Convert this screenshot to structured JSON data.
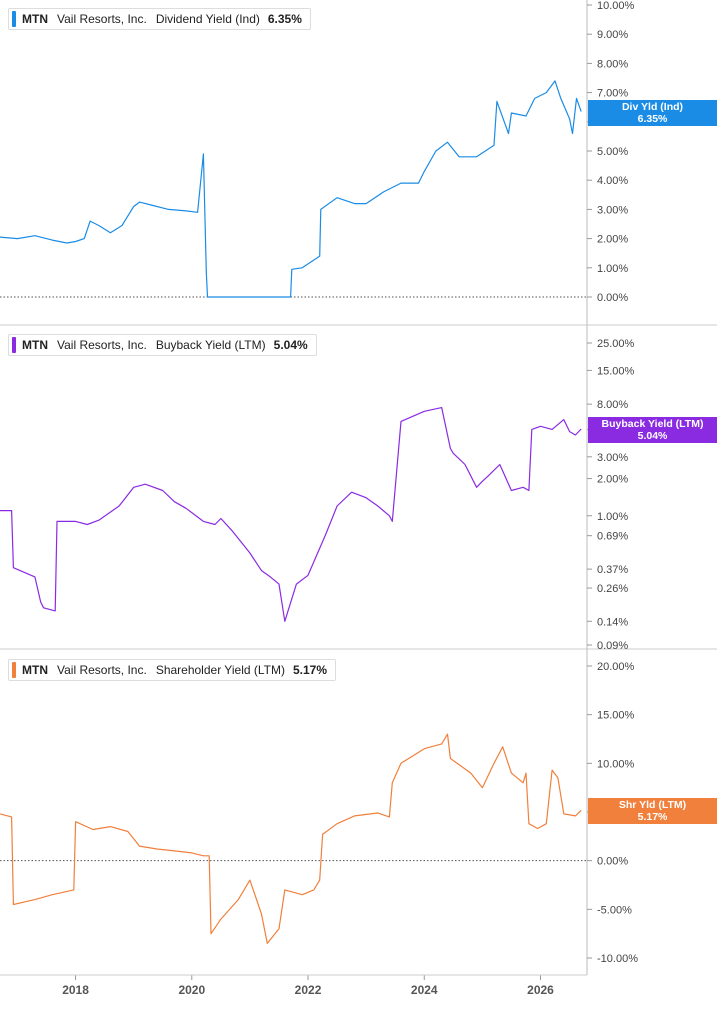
{
  "panels": [
    {
      "ticker": "MTN",
      "company": "Vail Resorts, Inc.",
      "metric": "Dividend Yield (Ind)",
      "current_value": "6.35%",
      "badge_label": "Div Yld (Ind)",
      "badge_value": "6.35%",
      "color": "#1a8ce6"
    },
    {
      "ticker": "MTN",
      "company": "Vail Resorts, Inc.",
      "metric": "Buyback Yield (LTM)",
      "current_value": "5.04%",
      "badge_label": "Buyback Yield (LTM)",
      "badge_value": "5.04%",
      "color": "#8a2be2"
    },
    {
      "ticker": "MTN",
      "company": "Vail Resorts, Inc.",
      "metric": "Shareholder Yield (LTM)",
      "current_value": "5.17%",
      "badge_label": "Shr Yld (LTM)",
      "badge_value": "5.17%",
      "color": "#f0803c"
    }
  ],
  "chart_data": [
    {
      "type": "line",
      "title": "MTN Vail Resorts, Inc. Dividend Yield (Ind) 6.35%",
      "y_scale": "linear",
      "ylim": [
        0,
        10
      ],
      "xlim": [
        2016.7,
        2026.8
      ],
      "y_ticks": [
        0,
        1,
        2,
        3,
        4,
        5,
        6,
        7,
        8,
        9,
        10
      ],
      "y_tick_labels": [
        "0.00%",
        "1.00%",
        "2.00%",
        "3.00%",
        "4.00%",
        "5.00%",
        "6.00%",
        "7.00%",
        "8.00%",
        "9.00%",
        "10.00%"
      ],
      "zero_line": "dotted",
      "series": [
        {
          "name": "Div Yld (Ind)",
          "x": [
            2016.7,
            2017.0,
            2017.3,
            2017.6,
            2017.85,
            2018.0,
            2018.15,
            2018.25,
            2018.4,
            2018.6,
            2018.8,
            2019.0,
            2019.1,
            2019.3,
            2019.6,
            2019.9,
            2020.1,
            2020.2,
            2020.25,
            2020.27,
            2021.7,
            2021.72,
            2021.9,
            2022.2,
            2022.22,
            2022.5,
            2022.8,
            2023.0,
            2023.3,
            2023.6,
            2023.9,
            2024.0,
            2024.2,
            2024.4,
            2024.6,
            2024.9,
            2025.2,
            2025.25,
            2025.45,
            2025.5,
            2025.75,
            2025.9,
            2026.1,
            2026.25,
            2026.35,
            2026.5,
            2026.55,
            2026.62,
            2026.7
          ],
          "y": [
            2.05,
            2.0,
            2.1,
            1.95,
            1.85,
            1.9,
            2.0,
            2.6,
            2.45,
            2.2,
            2.45,
            3.1,
            3.25,
            3.15,
            3.0,
            2.95,
            2.9,
            4.9,
            0.85,
            0.0,
            0.0,
            0.95,
            1.0,
            1.4,
            3.0,
            3.4,
            3.2,
            3.2,
            3.6,
            3.9,
            3.9,
            4.3,
            5.0,
            5.3,
            4.8,
            4.8,
            5.2,
            6.7,
            5.6,
            6.3,
            6.2,
            6.8,
            7.0,
            7.4,
            6.8,
            6.1,
            5.6,
            6.8,
            6.35
          ]
        }
      ],
      "x_tick_labels": [
        "2018",
        "2020",
        "2022",
        "2024",
        "2026"
      ],
      "x_ticks": [
        2018,
        2020,
        2022,
        2024,
        2026
      ]
    },
    {
      "type": "line",
      "title": "MTN Vail Resorts, Inc. Buyback Yield (LTM) 5.04%",
      "y_scale": "log",
      "ylim": [
        0.09,
        25
      ],
      "xlim": [
        2016.7,
        2026.8
      ],
      "y_ticks": [
        0.09,
        0.14,
        0.26,
        0.37,
        0.69,
        1.0,
        2.0,
        3.0,
        5.0,
        8.0,
        15.0,
        25.0
      ],
      "y_tick_labels": [
        "0.09%",
        "0.14%",
        "0.26%",
        "0.37%",
        "0.69%",
        "1.00%",
        "2.00%",
        "3.00%",
        "5.00%",
        "8.00%",
        "15.00%",
        "25.00%"
      ],
      "series": [
        {
          "name": "Buyback Yield (LTM)",
          "x": [
            2016.7,
            2016.9,
            2016.93,
            2017.3,
            2017.4,
            2017.45,
            2017.65,
            2017.68,
            2018.0,
            2018.2,
            2018.4,
            2018.75,
            2019.0,
            2019.2,
            2019.5,
            2019.7,
            2019.9,
            2020.2,
            2020.4,
            2020.5,
            2020.7,
            2021.0,
            2021.2,
            2021.35,
            2021.5,
            2021.6,
            2021.8,
            2022.0,
            2022.3,
            2022.5,
            2022.75,
            2023.0,
            2023.2,
            2023.4,
            2023.45,
            2023.6,
            2024.0,
            2024.3,
            2024.45,
            2024.5,
            2024.7,
            2024.9,
            2025.0,
            2025.1,
            2025.3,
            2025.5,
            2025.7,
            2025.8,
            2025.85,
            2026.0,
            2026.2,
            2026.4,
            2026.5,
            2026.6,
            2026.7
          ],
          "y": [
            1.1,
            1.1,
            0.38,
            0.32,
            0.2,
            0.18,
            0.17,
            0.9,
            0.9,
            0.85,
            0.92,
            1.2,
            1.7,
            1.8,
            1.6,
            1.3,
            1.15,
            0.9,
            0.85,
            0.95,
            0.75,
            0.5,
            0.36,
            0.32,
            0.28,
            0.14,
            0.28,
            0.33,
            0.7,
            1.2,
            1.55,
            1.4,
            1.2,
            1.0,
            0.9,
            5.8,
            7.0,
            7.5,
            3.5,
            3.2,
            2.6,
            1.7,
            1.9,
            2.1,
            2.6,
            1.6,
            1.7,
            1.6,
            5.0,
            5.3,
            5.0,
            6.0,
            4.8,
            4.5,
            5.04
          ]
        }
      ],
      "x_tick_labels": [
        "2018",
        "2020",
        "2022",
        "2024",
        "2026"
      ],
      "x_ticks": [
        2018,
        2020,
        2022,
        2024,
        2026
      ]
    },
    {
      "type": "line",
      "title": "MTN Vail Resorts, Inc. Shareholder Yield (LTM) 5.17%",
      "y_scale": "linear",
      "ylim": [
        -10,
        20
      ],
      "xlim": [
        2016.7,
        2026.8
      ],
      "y_ticks": [
        -10,
        -5,
        0,
        5,
        10,
        15,
        20
      ],
      "y_tick_labels": [
        "-10.00%",
        "-5.00%",
        "0.00%",
        "5.00%",
        "10.00%",
        "15.00%",
        "20.00%"
      ],
      "zero_line": "dotted",
      "series": [
        {
          "name": "Shr Yld (LTM)",
          "x": [
            2016.7,
            2016.9,
            2016.93,
            2017.3,
            2017.6,
            2017.97,
            2018.0,
            2018.3,
            2018.6,
            2018.9,
            2019.1,
            2019.4,
            2019.7,
            2020.0,
            2020.2,
            2020.3,
            2020.33,
            2020.5,
            2020.8,
            2021.0,
            2021.2,
            2021.3,
            2021.5,
            2021.6,
            2021.9,
            2022.1,
            2022.2,
            2022.25,
            2022.5,
            2022.8,
            2023.2,
            2023.4,
            2023.45,
            2023.6,
            2024.0,
            2024.3,
            2024.4,
            2024.45,
            2024.8,
            2025.0,
            2025.2,
            2025.35,
            2025.5,
            2025.7,
            2025.75,
            2025.8,
            2025.95,
            2026.1,
            2026.2,
            2026.3,
            2026.4,
            2026.6,
            2026.7
          ],
          "y": [
            4.8,
            4.5,
            -4.5,
            -4.0,
            -3.5,
            -3.0,
            4.0,
            3.2,
            3.5,
            3.0,
            1.5,
            1.2,
            1.0,
            0.8,
            0.5,
            0.5,
            -7.5,
            -6.0,
            -4.0,
            -2.0,
            -5.5,
            -8.5,
            -7.0,
            -3.0,
            -3.5,
            -3.0,
            -2.0,
            2.7,
            3.8,
            4.6,
            4.9,
            4.5,
            8.0,
            10.0,
            11.5,
            12.0,
            13.0,
            10.5,
            9.0,
            7.5,
            10.0,
            11.7,
            9.0,
            8.0,
            9.0,
            3.8,
            3.3,
            3.8,
            9.3,
            8.5,
            4.8,
            4.6,
            5.17
          ]
        }
      ],
      "x_tick_labels": [
        "2018",
        "2020",
        "2022",
        "2024",
        "2026"
      ],
      "x_ticks": [
        2018,
        2020,
        2022,
        2024,
        2026
      ]
    }
  ]
}
